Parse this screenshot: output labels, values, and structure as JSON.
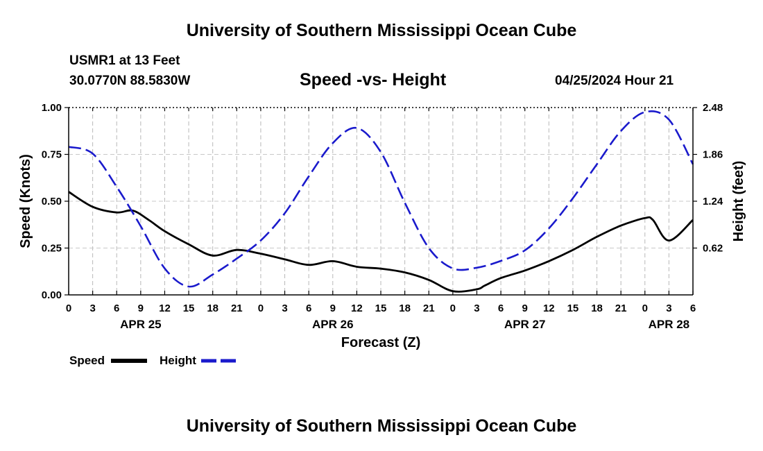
{
  "header": {
    "title": "University of Southern Mississippi Ocean Cube",
    "station": "USMR1 at 13 Feet",
    "coords": "30.0770N  88.5830W",
    "subtitle": "Speed -vs- Height",
    "datetime": "04/25/2024 Hour 21"
  },
  "footer": {
    "title": "University of Southern Mississippi Ocean Cube"
  },
  "chart_data": {
    "type": "line",
    "title": "Speed -vs- Height",
    "xlabel": "Forecast (Z)",
    "ylabel": "Speed (Knots)",
    "y2label": "Height (feet)",
    "x_range": [
      0,
      78
    ],
    "ylim": [
      0,
      1.0
    ],
    "y2lim": [
      0,
      2.48
    ],
    "grid": true,
    "x_tick_labels": [
      "0",
      "3",
      "6",
      "9",
      "12",
      "15",
      "18",
      "21",
      "0",
      "3",
      "6",
      "9",
      "12",
      "15",
      "18",
      "21",
      "0",
      "3",
      "6",
      "9",
      "12",
      "15",
      "18",
      "21",
      "0",
      "3",
      "6"
    ],
    "y_ticks": [
      0,
      0.25,
      0.5,
      0.75,
      1.0
    ],
    "y_tick_labels": [
      "0.00",
      "0.25",
      "0.50",
      "0.75",
      "1.00"
    ],
    "y2_ticks": [
      0.62,
      1.24,
      1.86,
      2.48
    ],
    "y2_tick_labels": [
      "0.62",
      "1.24",
      "1.86",
      "2.48"
    ],
    "date_labels": [
      {
        "label": "APR 25",
        "hour": 9
      },
      {
        "label": "APR 26",
        "hour": 33
      },
      {
        "label": "APR 27",
        "hour": 57
      },
      {
        "label": "APR 28",
        "hour": 75
      }
    ],
    "legend": [
      {
        "label": "Speed",
        "color": "#000000",
        "style": "solid"
      },
      {
        "label": "Height",
        "color": "#1a1acc",
        "style": "dashed"
      }
    ],
    "legend_position": "bottom-left",
    "series": [
      {
        "name": "Speed",
        "axis": "left",
        "color": "#000000",
        "style": "solid",
        "x": [
          0,
          3,
          6,
          8,
          10,
          12,
          15,
          18,
          21,
          24,
          27,
          30,
          33,
          36,
          39,
          42,
          45,
          48,
          51,
          52,
          54,
          57,
          60,
          63,
          66,
          69,
          72,
          73,
          75,
          78
        ],
        "values": [
          0.55,
          0.47,
          0.44,
          0.45,
          0.4,
          0.34,
          0.27,
          0.21,
          0.24,
          0.22,
          0.19,
          0.16,
          0.18,
          0.15,
          0.14,
          0.12,
          0.08,
          0.02,
          0.03,
          0.05,
          0.09,
          0.13,
          0.18,
          0.24,
          0.31,
          0.37,
          0.41,
          0.4,
          0.29,
          0.4
        ]
      },
      {
        "name": "Height",
        "axis": "right",
        "color": "#1a1acc",
        "style": "dashed",
        "x": [
          0,
          3,
          6,
          9,
          12,
          15,
          18,
          21,
          24,
          27,
          30,
          33,
          36,
          39,
          42,
          45,
          48,
          51,
          54,
          57,
          60,
          63,
          66,
          69,
          72,
          75,
          78
        ],
        "values": [
          1.96,
          1.87,
          1.43,
          0.91,
          0.35,
          0.11,
          0.27,
          0.48,
          0.72,
          1.08,
          1.57,
          2.01,
          2.21,
          1.89,
          1.22,
          0.62,
          0.35,
          0.36,
          0.45,
          0.59,
          0.88,
          1.28,
          1.73,
          2.17,
          2.42,
          2.32,
          1.73
        ]
      }
    ]
  }
}
